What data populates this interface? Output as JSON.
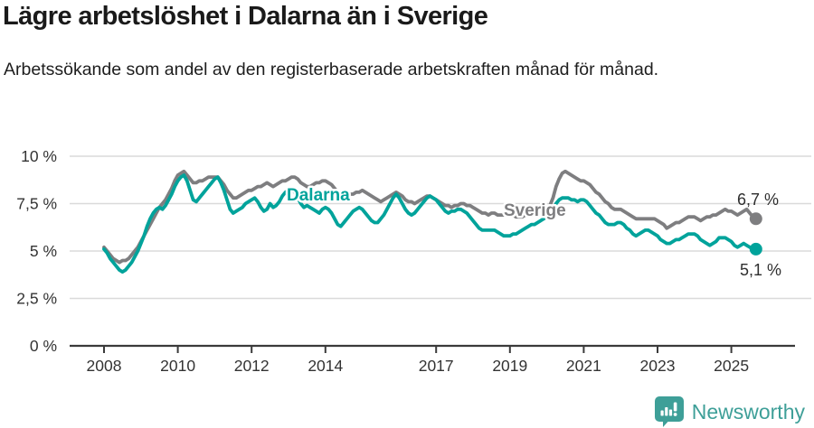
{
  "header": {
    "title": "Lägre arbetslöshet i Dalarna än i Sverige",
    "subtitle": "Arbetssökande som andel av den registerbaserade arbetskraften månad för månad."
  },
  "chart_data": {
    "type": "line",
    "title": "Lägre arbetslöshet i Dalarna än i Sverige",
    "subtitle": "Arbetssökande som andel av den registerbaserade arbetskraften månad för månad.",
    "unit": "%",
    "x_unit": "month",
    "x_start": "2008-01",
    "x_end": "2025-09",
    "x_tick_years": [
      2008,
      2010,
      2012,
      2014,
      2017,
      2019,
      2021,
      2023,
      2025
    ],
    "x_tick_labels": [
      "2008",
      "2010",
      "2012",
      "2014",
      "2017",
      "2019",
      "2021",
      "2023",
      "2025"
    ],
    "y_ticks": [
      0,
      2.5,
      5,
      7.5,
      10
    ],
    "y_tick_labels": [
      "0 %",
      "2,5 %",
      "5 %",
      "7,5 %",
      "10 %"
    ],
    "ylim": [
      0,
      10
    ],
    "grid": "horizontal",
    "legend_position": "inline-labels",
    "series": [
      {
        "name": "Dalarna",
        "color": "#00A39B",
        "end_label": "5,1 %",
        "end_value": 5.1,
        "values": [
          5.1,
          4.9,
          4.6,
          4.4,
          4.2,
          4.0,
          3.9,
          4.0,
          4.2,
          4.4,
          4.7,
          5.0,
          5.4,
          5.8,
          6.3,
          6.7,
          7.0,
          7.2,
          7.3,
          7.2,
          7.4,
          7.7,
          8.0,
          8.4,
          8.7,
          8.9,
          9.0,
          8.7,
          8.2,
          7.7,
          7.6,
          7.8,
          8.0,
          8.2,
          8.4,
          8.6,
          8.8,
          8.9,
          8.6,
          8.2,
          7.7,
          7.2,
          7.0,
          7.1,
          7.2,
          7.3,
          7.5,
          7.6,
          7.7,
          7.8,
          7.6,
          7.3,
          7.1,
          7.2,
          7.5,
          7.3,
          7.4,
          7.6,
          7.9,
          8.1,
          8.2,
          8.3,
          8.1,
          7.8,
          7.5,
          7.3,
          7.4,
          7.3,
          7.2,
          7.1,
          7.0,
          7.2,
          7.3,
          7.2,
          7.0,
          6.7,
          6.4,
          6.3,
          6.5,
          6.7,
          6.9,
          7.1,
          7.2,
          7.3,
          7.2,
          7.0,
          6.8,
          6.6,
          6.5,
          6.5,
          6.7,
          6.9,
          7.2,
          7.5,
          7.8,
          8.0,
          7.8,
          7.5,
          7.2,
          7.0,
          6.9,
          7.0,
          7.2,
          7.4,
          7.6,
          7.8,
          7.9,
          7.8,
          7.7,
          7.5,
          7.3,
          7.1,
          7.0,
          7.1,
          7.1,
          7.2,
          7.2,
          7.1,
          7.0,
          6.8,
          6.6,
          6.4,
          6.2,
          6.1,
          6.1,
          6.1,
          6.1,
          6.1,
          6.0,
          5.9,
          5.8,
          5.8,
          5.8,
          5.9,
          5.9,
          6.0,
          6.1,
          6.2,
          6.3,
          6.4,
          6.4,
          6.5,
          6.6,
          6.7,
          6.8,
          6.9,
          7.1,
          7.5,
          7.7,
          7.8,
          7.8,
          7.8,
          7.7,
          7.7,
          7.6,
          7.7,
          7.7,
          7.6,
          7.4,
          7.2,
          7.0,
          6.9,
          6.7,
          6.5,
          6.4,
          6.4,
          6.4,
          6.5,
          6.5,
          6.4,
          6.2,
          6.1,
          5.9,
          5.8,
          5.9,
          6.0,
          6.1,
          6.1,
          6.0,
          5.9,
          5.8,
          5.6,
          5.5,
          5.4,
          5.4,
          5.5,
          5.6,
          5.6,
          5.7,
          5.8,
          5.9,
          5.9,
          5.9,
          5.8,
          5.6,
          5.5,
          5.4,
          5.3,
          5.4,
          5.5,
          5.7,
          5.7,
          5.7,
          5.6,
          5.5,
          5.3,
          5.2,
          5.3,
          5.4,
          5.3,
          5.2,
          5.1,
          5.1
        ]
      },
      {
        "name": "Sverige",
        "color": "#7E7E80",
        "end_label": "6,7 %",
        "end_value": 6.7,
        "values": [
          5.2,
          5.0,
          4.8,
          4.6,
          4.5,
          4.4,
          4.5,
          4.5,
          4.6,
          4.8,
          5.0,
          5.2,
          5.5,
          5.8,
          6.1,
          6.4,
          6.7,
          7.0,
          7.3,
          7.5,
          7.7,
          8.0,
          8.3,
          8.7,
          9.0,
          9.1,
          9.2,
          9.0,
          8.8,
          8.6,
          8.6,
          8.7,
          8.7,
          8.8,
          8.9,
          8.9,
          8.9,
          8.9,
          8.7,
          8.5,
          8.2,
          8.0,
          7.8,
          7.8,
          7.9,
          8.0,
          8.1,
          8.2,
          8.2,
          8.3,
          8.4,
          8.4,
          8.5,
          8.6,
          8.5,
          8.4,
          8.5,
          8.6,
          8.7,
          8.7,
          8.8,
          8.9,
          8.9,
          8.8,
          8.6,
          8.5,
          8.4,
          8.4,
          8.5,
          8.6,
          8.6,
          8.7,
          8.7,
          8.6,
          8.5,
          8.3,
          8.1,
          8.0,
          7.9,
          7.9,
          8.0,
          8.0,
          8.1,
          8.1,
          8.2,
          8.1,
          8.0,
          7.9,
          7.8,
          7.7,
          7.6,
          7.7,
          7.8,
          7.9,
          8.0,
          8.1,
          8.0,
          7.9,
          7.7,
          7.6,
          7.6,
          7.5,
          7.6,
          7.7,
          7.8,
          7.9,
          7.9,
          7.8,
          7.7,
          7.6,
          7.5,
          7.4,
          7.4,
          7.3,
          7.4,
          7.4,
          7.5,
          7.5,
          7.4,
          7.4,
          7.3,
          7.2,
          7.1,
          7.0,
          7.0,
          6.9,
          7.0,
          7.0,
          6.9,
          6.9,
          6.9,
          7.0,
          7.0,
          6.9,
          6.8,
          6.8,
          6.8,
          6.9,
          6.9,
          7.0,
          7.0,
          7.1,
          7.1,
          7.2,
          7.3,
          7.4,
          7.8,
          8.4,
          8.8,
          9.1,
          9.2,
          9.1,
          9.0,
          8.9,
          8.8,
          8.7,
          8.7,
          8.6,
          8.5,
          8.3,
          8.1,
          8.0,
          7.8,
          7.6,
          7.5,
          7.3,
          7.2,
          7.2,
          7.2,
          7.1,
          7.0,
          6.9,
          6.8,
          6.7,
          6.7,
          6.7,
          6.7,
          6.7,
          6.7,
          6.7,
          6.6,
          6.5,
          6.4,
          6.2,
          6.3,
          6.4,
          6.5,
          6.5,
          6.6,
          6.7,
          6.8,
          6.8,
          6.8,
          6.7,
          6.6,
          6.7,
          6.8,
          6.8,
          6.9,
          6.9,
          7.0,
          7.1,
          7.2,
          7.1,
          7.1,
          7.0,
          6.9,
          7.0,
          7.1,
          7.2,
          7.0,
          6.8,
          6.7
        ]
      }
    ]
  },
  "colors": {
    "dalarna": "#00A39B",
    "sverige": "#7E7E80",
    "grid": "#DADADA",
    "axis": "#3A3A3A",
    "axis_text": "#333333",
    "title": "#1A1A1A",
    "end_label_text": "#2E2E2E",
    "brand": "#3E9F98"
  },
  "footer": {
    "brand": "Newsworthy",
    "logo_icon": "bar-chart-speech-bubble-icon"
  }
}
